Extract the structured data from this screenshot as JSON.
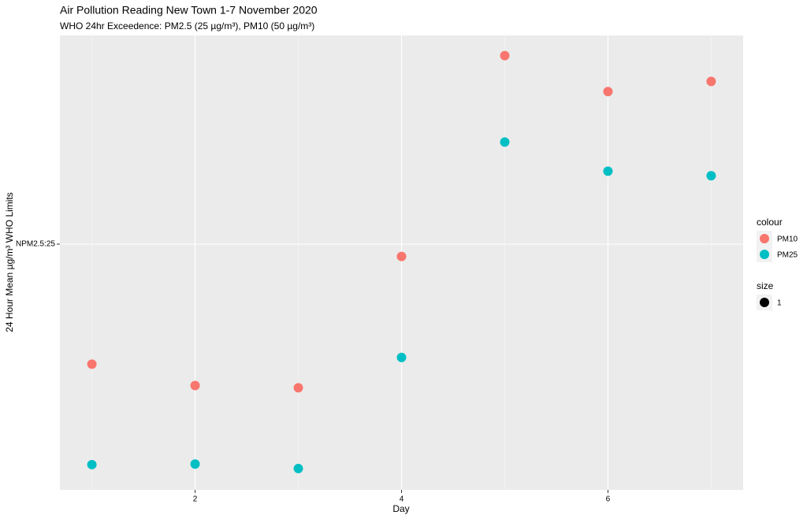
{
  "chart_data": {
    "type": "scatter",
    "title": "Air Pollution Reading New Town 1-7 November 2020",
    "subtitle": "WHO 24hr Exceedence: PM2.5 (25 µg/m³), PM10 (50 µg/m³)",
    "x_label": "Day",
    "y_label": "24 Hour Mean µg/m³ WHO Limits",
    "x": [
      1,
      2,
      3,
      4,
      5,
      6,
      7
    ],
    "series": [
      {
        "name": "PM10",
        "color": "#F8766D",
        "values": [
          14.3,
          12.4,
          12.2,
          23.9,
          41.8,
          38.6,
          39.5
        ]
      },
      {
        "name": "PM25",
        "color": "#00BFC4",
        "values": [
          5.35,
          5.4,
          5.0,
          14.9,
          34.1,
          31.5,
          31.1
        ]
      }
    ],
    "xlim": [
      0.69,
      7.31
    ],
    "ylim": [
      3.1,
      43.6
    ],
    "xticks": [
      2,
      4,
      6
    ],
    "yticks": [
      {
        "value": 25,
        "label": "NPM2.5:25"
      }
    ],
    "grid": true,
    "legend_title": "colour",
    "size_legend": {
      "title": "size",
      "labels": [
        "1"
      ]
    }
  }
}
